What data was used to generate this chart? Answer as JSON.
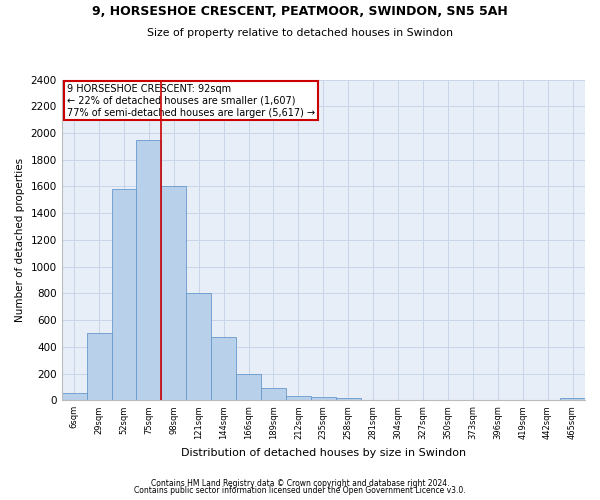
{
  "title1": "9, HORSESHOE CRESCENT, PEATMOOR, SWINDON, SN5 5AH",
  "title2": "Size of property relative to detached houses in Swindon",
  "xlabel": "Distribution of detached houses by size in Swindon",
  "ylabel": "Number of detached properties",
  "footnote1": "Contains HM Land Registry data © Crown copyright and database right 2024.",
  "footnote2": "Contains public sector information licensed under the Open Government Licence v3.0.",
  "bar_labels": [
    "6sqm",
    "29sqm",
    "52sqm",
    "75sqm",
    "98sqm",
    "121sqm",
    "144sqm",
    "166sqm",
    "189sqm",
    "212sqm",
    "235sqm",
    "258sqm",
    "281sqm",
    "304sqm",
    "327sqm",
    "350sqm",
    "373sqm",
    "396sqm",
    "419sqm",
    "442sqm",
    "465sqm"
  ],
  "bar_values": [
    55,
    500,
    1580,
    1950,
    1600,
    800,
    475,
    200,
    90,
    35,
    25,
    20,
    0,
    0,
    0,
    0,
    0,
    0,
    0,
    0,
    20
  ],
  "bar_color": "#b8d0ea",
  "bar_edge_color": "#6699cc",
  "grid_color": "#c8d4e8",
  "background_color": "#e8eef8",
  "red_line_index": 3.5,
  "annotation_text1": "9 HORSESHOE CRESCENT: 92sqm",
  "annotation_text2": "← 22% of detached houses are smaller (1,607)",
  "annotation_text3": "77% of semi-detached houses are larger (5,617) →",
  "annotation_box_color": "#ffffff",
  "annotation_border_color": "#cc0000",
  "red_line_color": "#cc0000",
  "ylim": [
    0,
    2400
  ],
  "yticks": [
    0,
    200,
    400,
    600,
    800,
    1000,
    1200,
    1400,
    1600,
    1800,
    2000,
    2200,
    2400
  ]
}
